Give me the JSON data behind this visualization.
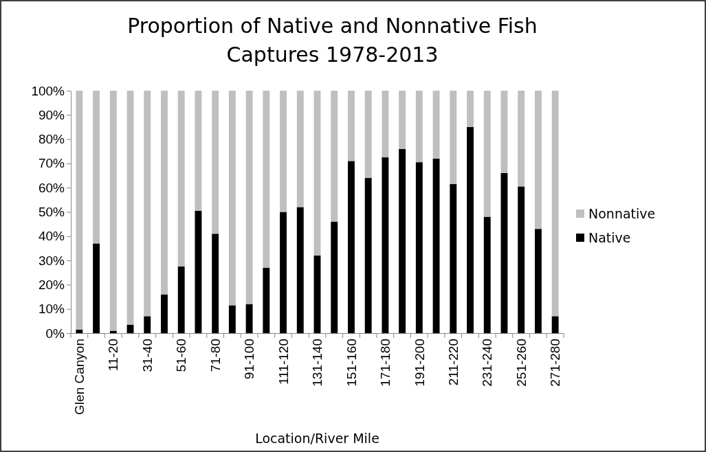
{
  "chart_data": {
    "type": "bar",
    "title": "Proportion of Native and Nonnative Fish Captures 1978-2013",
    "xlabel": "Location/River Mile",
    "stacked": true,
    "legend": "right",
    "grid": false,
    "categories": [
      "Glen Canyon",
      null,
      "11-20",
      null,
      "31-40",
      null,
      "51-60",
      null,
      "71-80",
      null,
      "91-100",
      null,
      "111-120",
      null,
      "131-140",
      null,
      "151-160",
      null,
      "171-180",
      null,
      "191-200",
      null,
      "211-220",
      null,
      "231-240",
      null,
      "251-260",
      null,
      "271-280"
    ],
    "ylim": [
      0,
      100
    ],
    "yticks": [
      {
        "value": 0,
        "label": "0%"
      },
      {
        "value": 10,
        "label": "10%"
      },
      {
        "value": 20,
        "label": "20%"
      },
      {
        "value": 30,
        "label": "30%"
      },
      {
        "value": 40,
        "label": "40%"
      },
      {
        "value": 50,
        "label": "50%"
      },
      {
        "value": 60,
        "label": "60%"
      },
      {
        "value": 70,
        "label": "70%"
      },
      {
        "value": 80,
        "label": "80%"
      },
      {
        "value": 90,
        "label": "90%"
      },
      {
        "value": 100,
        "label": "100%"
      }
    ],
    "series": [
      {
        "name": "Native",
        "color": "#000000",
        "values": [
          1.5,
          37,
          1,
          3.5,
          7,
          16,
          27.5,
          50.5,
          41,
          11.5,
          12,
          27,
          50,
          52,
          32,
          46,
          71,
          64,
          72.5,
          76,
          70.5,
          72,
          61.5,
          85,
          48,
          66,
          60.5,
          43,
          7
        ]
      },
      {
        "name": "Nonnative",
        "color": "#bfbfbf",
        "values": [
          98.5,
          63,
          99,
          96.5,
          93,
          84,
          72.5,
          49.5,
          59,
          88.5,
          88,
          73,
          50,
          48,
          68,
          54,
          29,
          36,
          27.5,
          24,
          29.5,
          28,
          38.5,
          15,
          52,
          34,
          39.5,
          57,
          93
        ]
      }
    ]
  }
}
